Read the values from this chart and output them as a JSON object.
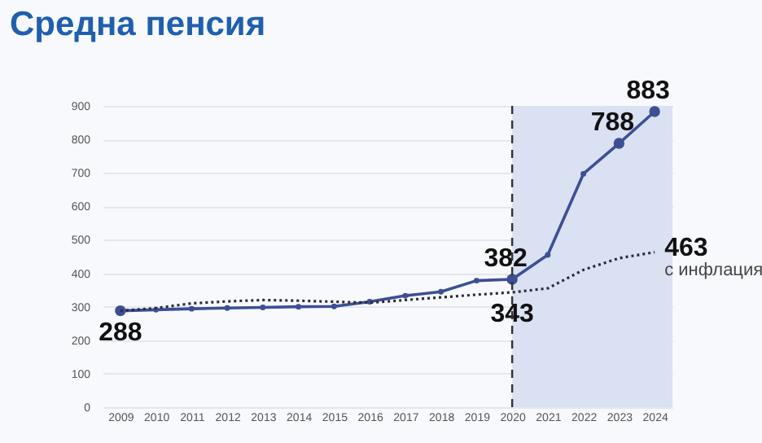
{
  "chart_data": {
    "type": "line",
    "title": "Средна пенсия",
    "categories": [
      "2009",
      "2010",
      "2011",
      "2012",
      "2013",
      "2014",
      "2015",
      "2016",
      "2017",
      "2018",
      "2019",
      "2020",
      "2021",
      "2022",
      "2023",
      "2024"
    ],
    "series": [
      {
        "color": "#3d4f94",
        "line_style": "solid",
        "marker": "circle",
        "values": [
          288,
          291,
          294,
          296,
          298,
          300,
          301,
          315,
          333,
          345,
          378,
          382,
          455,
          697,
          788,
          883
        ],
        "value_labels": [
          "288",
          null,
          null,
          null,
          null,
          null,
          null,
          null,
          null,
          null,
          null,
          "382",
          null,
          null,
          "788",
          "883"
        ]
      },
      {
        "name": "с инфлация",
        "color": "#2b2b3a",
        "line_style": "dotted",
        "marker": "none",
        "values": [
          288,
          296,
          310,
          316,
          320,
          318,
          315,
          312,
          320,
          328,
          336,
          343,
          355,
          410,
          445,
          463
        ],
        "value_labels": [
          null,
          null,
          null,
          null,
          null,
          null,
          null,
          null,
          null,
          null,
          null,
          "343",
          null,
          null,
          null,
          "463"
        ]
      }
    ],
    "ylim": [
      0,
      900
    ],
    "yticks": [
      0,
      100,
      200,
      300,
      400,
      500,
      600,
      700,
      800,
      900
    ],
    "grid": "y",
    "legend": false,
    "ref_lines": [
      {
        "axis": "x",
        "value": "2020",
        "color": "#333333",
        "line_style": "dashed"
      }
    ],
    "bands": [
      {
        "axis": "x",
        "from": "2020",
        "to": "2024",
        "color": "#d9e1f2"
      }
    ]
  }
}
